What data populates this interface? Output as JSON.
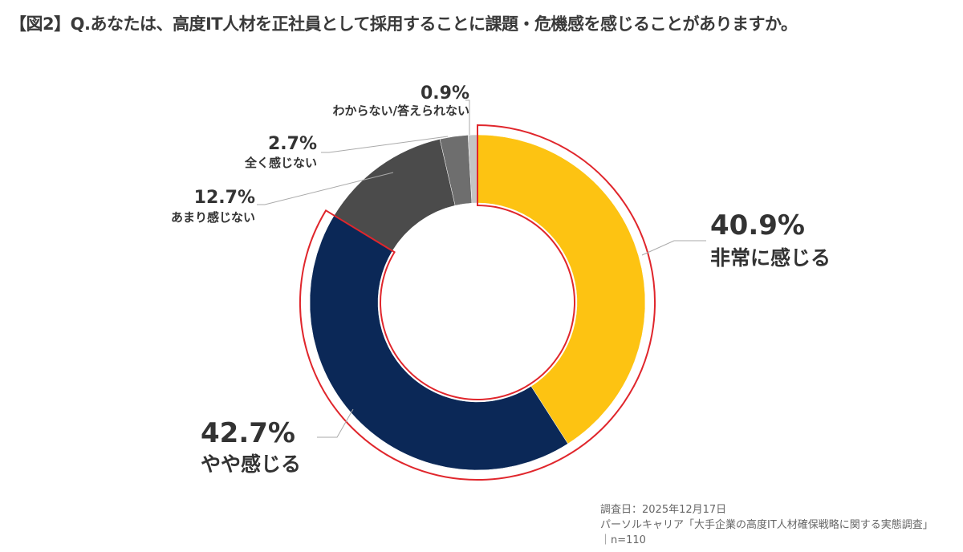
{
  "title": "【図2】Q.あなたは、高度IT人材を正社員として採用することに課題・危機感を感じることがありますか。",
  "chart_data": {
    "type": "pie",
    "variant": "donut",
    "categories": [
      "非常に感じる",
      "やや感じる",
      "あまり感じない",
      "全く感じない",
      "わからない/答えられない"
    ],
    "values": [
      40.9,
      42.7,
      12.7,
      2.7,
      0.9
    ],
    "labels": [
      "40.9%",
      "42.7%",
      "12.7%",
      "2.7%",
      "0.9%"
    ],
    "colors": [
      "#FDC312",
      "#0B2857",
      "#4B4B4B",
      "#6E6E6E",
      "#C4C4C4"
    ],
    "highlight_color": "#E0262C",
    "highlighted": [
      "非常に感じる",
      "やや感じる"
    ]
  },
  "footer": {
    "date": "調査日：2025年12月17日",
    "source": "パーソルキャリア「大手企業の高度IT人材確保戦略に関する実態調査」",
    "n": "｜n=110"
  }
}
